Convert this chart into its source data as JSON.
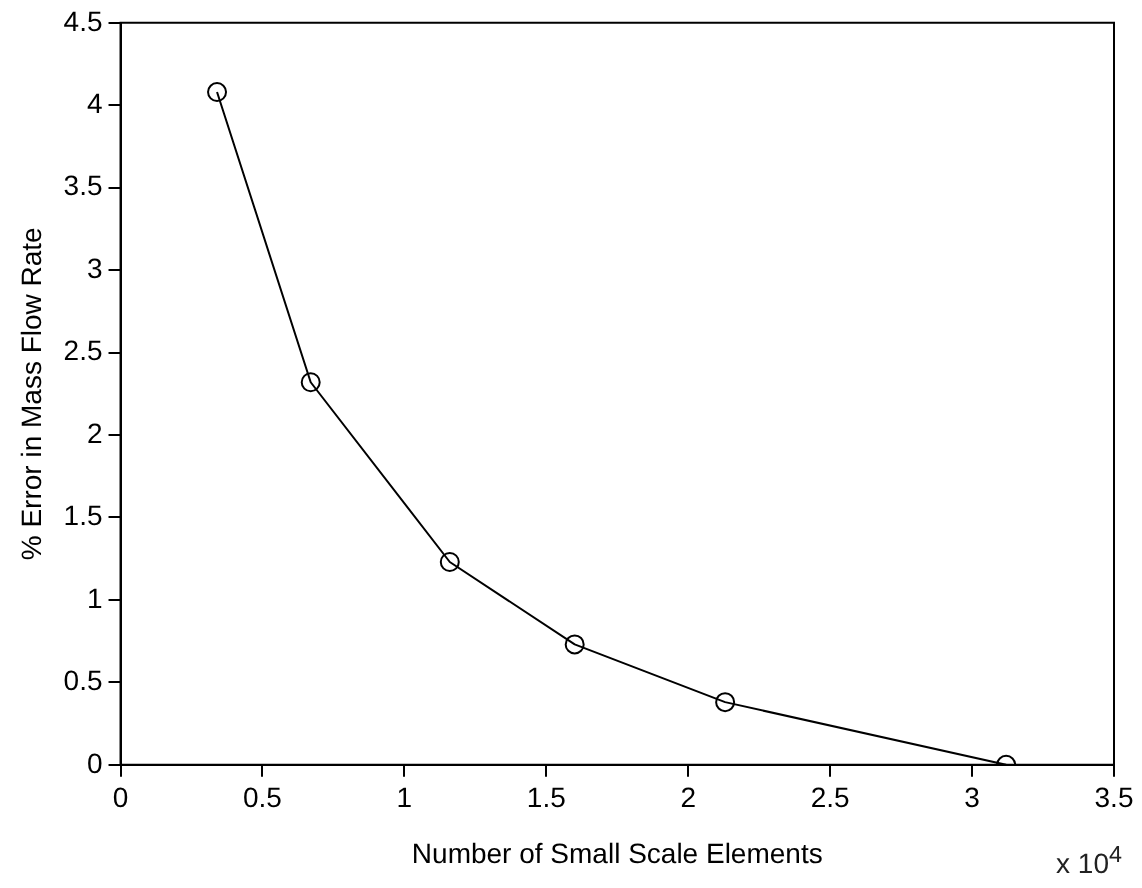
{
  "chart_data": {
    "type": "line",
    "xlabel": "Number of Small Scale Elements",
    "ylabel": "% Error in Mass Flow Rate",
    "annotations": [
      "x 10$^{4}$"
    ],
    "x": [
      0.34,
      0.67,
      1.16,
      1.6,
      2.13,
      3.12
    ],
    "series": [
      {
        "color": "#000000",
        "values": [
          4.08,
          2.32,
          1.23,
          0.73,
          0.38,
          0
        ]
      }
    ],
    "xlim": [
      0,
      3.5
    ],
    "xticks": [
      0,
      0.5,
      1,
      1.5,
      2,
      2.5,
      3,
      3.5
    ],
    "ylim": [
      0,
      4.5
    ],
    "yticks": [
      0,
      0.5,
      1,
      1.5,
      2,
      2.5,
      3,
      3.5,
      4,
      4.5
    ],
    "marker": "circle",
    "line_style": "solid",
    "grid": false,
    "legend": false
  }
}
